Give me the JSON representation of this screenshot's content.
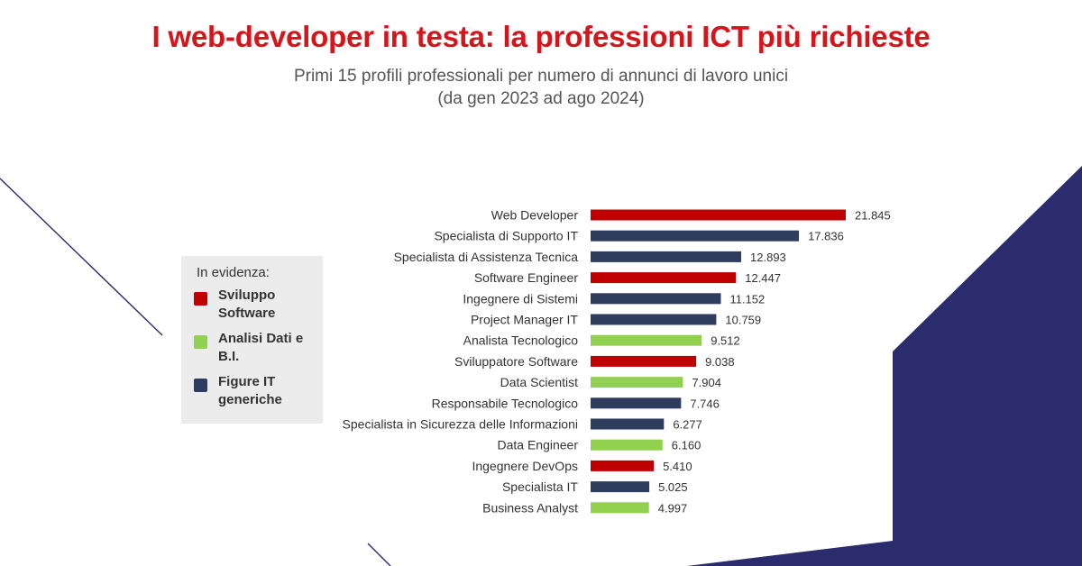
{
  "header": {
    "title": "I web-developer in testa: la professioni ICT più richieste",
    "subtitle_line1": "Primi 15 profili professionali per numero di annunci di lavoro unici",
    "subtitle_line2": "(da gen 2023 ad ago 2024)"
  },
  "legend": {
    "title": "In evidenza:",
    "items": [
      {
        "label": "Sviluppo Software",
        "color": "#c00000"
      },
      {
        "label": "Analisi Dati e B.I.",
        "color": "#92d050"
      },
      {
        "label": "Figure IT generiche",
        "color": "#2e3c5e"
      }
    ]
  },
  "colors": {
    "sviluppo": "#c00000",
    "analisi": "#92d050",
    "generiche": "#2e3c5e",
    "decor_navy": "#2b2c6e"
  },
  "chart_data": {
    "type": "bar",
    "orientation": "horizontal",
    "categories": [
      "Web Developer",
      "Specialista di Supporto IT",
      "Specialista di Assistenza Tecnica",
      "Software Engineer",
      "Ingegnere di Sistemi",
      "Project Manager IT",
      "Analista Tecnologico",
      "Sviluppatore Software",
      "Data Scientist",
      "Responsabile Tecnologico",
      "Specialista in Sicurezza delle Informazioni",
      "Data Engineer",
      "Ingegnere DevOps",
      "Specialista IT",
      "Business Analyst"
    ],
    "values": [
      21845,
      17836,
      12893,
      12447,
      11152,
      10759,
      9512,
      9038,
      7904,
      7746,
      6277,
      6160,
      5410,
      5025,
      4997
    ],
    "value_labels": [
      "21.845",
      "17.836",
      "12.893",
      "12.447",
      "11.152",
      "10.759",
      "9.512",
      "9.038",
      "7.904",
      "7.746",
      "6.277",
      "6.160",
      "5.410",
      "5.025",
      "4.997"
    ],
    "groups": [
      "sviluppo",
      "generiche",
      "generiche",
      "sviluppo",
      "generiche",
      "generiche",
      "analisi",
      "sviluppo",
      "analisi",
      "generiche",
      "generiche",
      "analisi",
      "sviluppo",
      "generiche",
      "analisi"
    ],
    "xlim": [
      0,
      21845
    ],
    "grid": false
  }
}
